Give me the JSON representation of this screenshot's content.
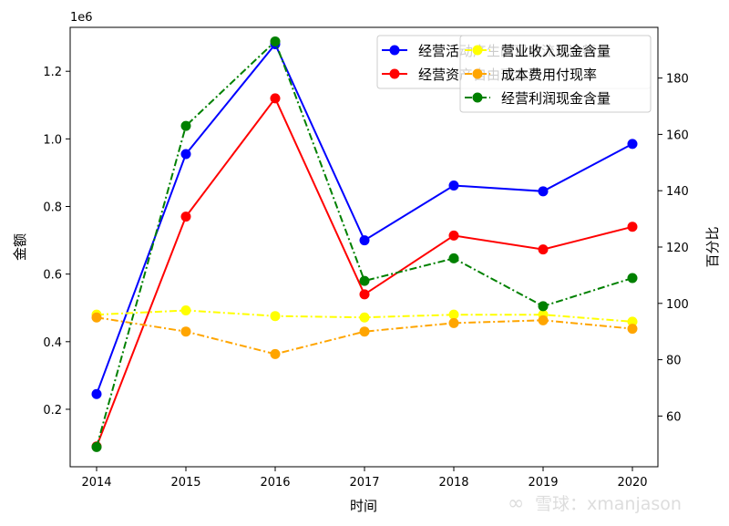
{
  "chart_data": {
    "type": "line",
    "xlabel": "时间",
    "ylabel_left": "金额",
    "ylabel_right": "百分比",
    "left_offset_text": "1e6",
    "x": [
      "2014",
      "2015",
      "2016",
      "2017",
      "2018",
      "2019",
      "2020"
    ],
    "left_axis": {
      "range": [
        0.03,
        1.33
      ],
      "ticks": [
        "0.2",
        "0.4",
        "0.6",
        "0.8",
        "1.0",
        "1.2"
      ]
    },
    "right_axis": {
      "range": [
        42,
        198
      ],
      "ticks": [
        "60",
        "80",
        "100",
        "120",
        "140",
        "160",
        "180"
      ]
    },
    "legend_left": {
      "placement": "top-right",
      "entries": [
        "经营活动产生的现金流量净额",
        "经营资产自由现金流"
      ]
    },
    "legend_right": {
      "placement": "top-right",
      "entries": [
        "营业收入现金含量",
        "成本费用付现率",
        "经营利润现金含量"
      ]
    },
    "series_left": [
      {
        "name": "经营活动产生的现金流量净额",
        "color": "#0000ff",
        "dash": "solid",
        "values": [
          0.245,
          0.955,
          1.28,
          0.7,
          0.862,
          0.845,
          0.985
        ]
      },
      {
        "name": "经营资产自由现金流",
        "color": "#ff0000",
        "dash": "solid",
        "values": [
          0.09,
          0.77,
          1.12,
          0.54,
          0.714,
          0.673,
          0.74
        ]
      }
    ],
    "series_right": [
      {
        "name": "营业收入现金含量",
        "color": "#ffff00",
        "dash": "dashdot",
        "values": [
          96,
          97.5,
          95.5,
          95,
          96,
          96,
          93.5
        ]
      },
      {
        "name": "成本费用付现率",
        "color": "#ffa500",
        "dash": "dashdot",
        "values": [
          95,
          90,
          82,
          90,
          93,
          94,
          91
        ]
      },
      {
        "name": "经营利润现金含量",
        "color": "#008000",
        "dash": "dashdot",
        "values": [
          49,
          163,
          193,
          108,
          116,
          99,
          109
        ]
      }
    ]
  },
  "watermark": "雪球：xmanjason"
}
